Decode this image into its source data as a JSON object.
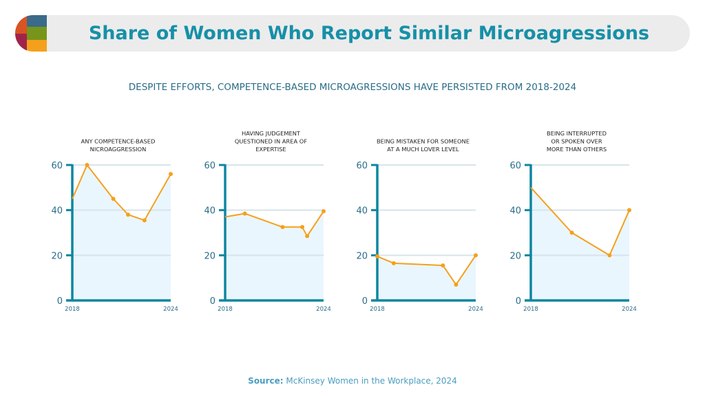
{
  "header": {
    "title": "Share of Women Who Report Similar Microagressions"
  },
  "subtitle": "DESPITE EFFORTS, COMPETENCE-BASED MICROAGRESSIONS HAVE PERSISTED FROM 2018-2024",
  "source": {
    "label": "Source:",
    "text": "McKinsey Women in the Workplace, 2024"
  },
  "colors": {
    "title": "#1690a8",
    "axis": "#0e86a0",
    "line": "#f5a01c",
    "fill": "#eaf6fd",
    "grid": "#d6e4ea",
    "logo": [
      "#d95423",
      "#3a6b8a",
      "#a0244a",
      "#76951a",
      "#f5a01c"
    ]
  },
  "chart_data": [
    {
      "type": "area",
      "title": "ANY COMPETENCE-BASED NICROAGGRESSION",
      "x": [
        2018,
        2018.9,
        2020.5,
        2021.4,
        2022.4,
        2024
      ],
      "y": [
        45,
        60,
        45,
        38,
        35.5,
        56
      ],
      "ylim": [
        0,
        60
      ],
      "yticks": [
        "0",
        "20",
        "40",
        "60"
      ],
      "xticks": [
        "2018",
        "2024"
      ],
      "grid": true
    },
    {
      "type": "area",
      "title": "HAVING JUDGEMENT QUESTIONED IN AREA OF EXPERTISE",
      "x": [
        2018,
        2019.2,
        2021.5,
        2022.7,
        2023,
        2024
      ],
      "y": [
        37,
        38.5,
        32.5,
        32.5,
        28.5,
        39.5
      ],
      "ylim": [
        0,
        60
      ],
      "yticks": [
        "0",
        "20",
        "40",
        "60"
      ],
      "xticks": [
        "2018",
        "2024"
      ],
      "grid": true
    },
    {
      "type": "area",
      "title": "BEING MISTAKEN FOR SOMEONE AT A MUCH LOVER LEVEL",
      "x": [
        2018,
        2019,
        2022,
        2022.8,
        2024
      ],
      "y": [
        19.5,
        16.5,
        15.5,
        7,
        20
      ],
      "ylim": [
        0,
        60
      ],
      "yticks": [
        "0",
        "20",
        "40",
        "60"
      ],
      "xticks": [
        "2018",
        "2024"
      ],
      "grid": true
    },
    {
      "type": "area",
      "title": "BEING INTERRUPTED OR SPOKEN OVER MORE THAN OTHERS",
      "x": [
        2018,
        2020.5,
        2022.8,
        2024
      ],
      "y": [
        50,
        30,
        20,
        40
      ],
      "ylim": [
        0,
        60
      ],
      "yticks": [
        "0",
        "20",
        "40",
        "60"
      ],
      "xticks": [
        "2018",
        "2024"
      ],
      "grid": true
    }
  ]
}
